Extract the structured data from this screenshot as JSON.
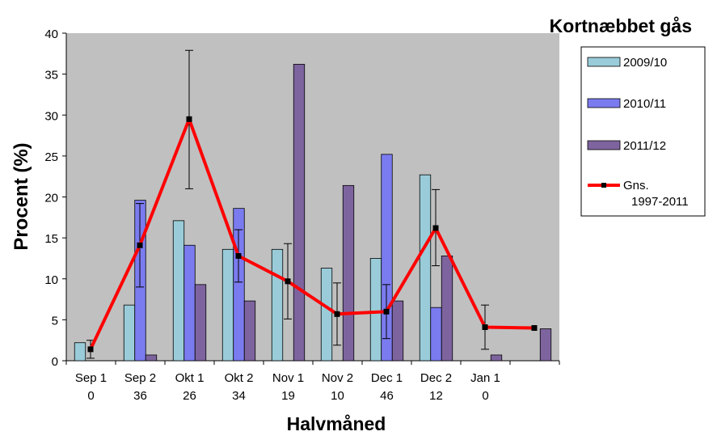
{
  "chart_data": {
    "type": "bar",
    "title": "Kortnæbbet gås",
    "xlabel": "Halvmåned",
    "ylabel": "Procent (%)",
    "ylim": [
      0,
      40
    ],
    "yticks": [
      0,
      5,
      10,
      15,
      20,
      25,
      30,
      35,
      40
    ],
    "grid": false,
    "legend_position": "right",
    "plot_background": "#c0c0c0",
    "categories": [
      "Sep 1",
      "Sep 2",
      "Okt 1",
      "Okt 2",
      "Nov 1",
      "Nov 2",
      "Dec 1",
      "Dec 2",
      "Jan 1",
      ""
    ],
    "category_counts": [
      "0",
      "36",
      "26",
      "34",
      "19",
      "10",
      "46",
      "12",
      "0",
      ""
    ],
    "series": [
      {
        "name": "2009/10",
        "type": "bar",
        "color": "#99ccd8",
        "values": [
          2.2,
          6.8,
          17.1,
          13.6,
          13.6,
          11.3,
          12.5,
          22.7,
          0,
          0
        ]
      },
      {
        "name": "2010/11",
        "type": "bar",
        "color": "#7b7bf0",
        "values": [
          0,
          19.6,
          14.1,
          18.6,
          0,
          0,
          25.2,
          6.5,
          0,
          0
        ]
      },
      {
        "name": "2011/12",
        "type": "bar",
        "color": "#7e649e",
        "values": [
          0,
          0.7,
          9.3,
          7.3,
          36.2,
          21.4,
          7.3,
          12.8,
          0.7,
          3.9
        ]
      },
      {
        "name": "Gns.\n1997-2011",
        "type": "line",
        "color": "#ff0000",
        "values": [
          1.4,
          14.1,
          29.5,
          12.8,
          9.7,
          5.7,
          6.0,
          16.2,
          4.1,
          4.0
        ],
        "error_low": [
          0.3,
          9.0,
          21.0,
          9.6,
          5.1,
          1.9,
          2.7,
          11.6,
          1.4,
          null
        ],
        "error_high": [
          2.5,
          19.2,
          37.9,
          16.0,
          14.3,
          9.5,
          9.3,
          20.9,
          6.8,
          null
        ]
      }
    ]
  }
}
